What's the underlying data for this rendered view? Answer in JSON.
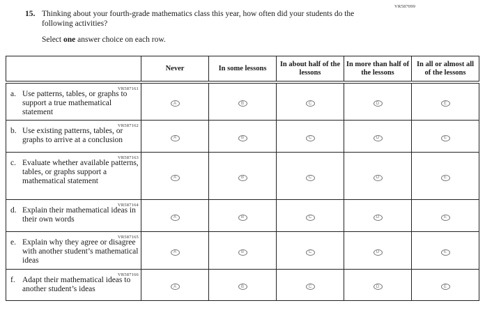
{
  "page": {
    "form_code": "VR587099",
    "question_number": "15.",
    "question_text": "Thinking about your fourth-grade mathematics class this year, how often did your students do the following activities?",
    "instruction_prefix": "Select ",
    "instruction_bold": "one",
    "instruction_suffix": " answer choice on each row.",
    "text_color": "#1a1a1a",
    "border_color": "#222222",
    "bubble_color": "#767676"
  },
  "table": {
    "columns": [
      "Never",
      "In some lessons",
      "In about half of the lessons",
      "In more than half of the lessons",
      "In all or almost all of the lessons"
    ],
    "options": [
      "A",
      "B",
      "C",
      "D",
      "E"
    ],
    "rows": [
      {
        "code": "VR587161",
        "letter": "a.",
        "text": "Use patterns, tables, or graphs to support a true mathematical statement"
      },
      {
        "code": "VR587162",
        "letter": "b.",
        "text": "Use existing patterns, tables, or graphs to arrive at a conclusion"
      },
      {
        "code": "VR587163",
        "letter": "c.",
        "text": "Evaluate whether available patterns, tables, or graphs support a mathematical statement"
      },
      {
        "code": "VR587164",
        "letter": "d.",
        "text": "Explain their mathematical ideas in their own words"
      },
      {
        "code": "VR587165",
        "letter": "e.",
        "text": "Explain why they agree or disagree with another student’s mathematical ideas"
      },
      {
        "code": "VR587166",
        "letter": "f.",
        "text": "Adapt their mathematical ideas to another student’s ideas"
      }
    ]
  }
}
